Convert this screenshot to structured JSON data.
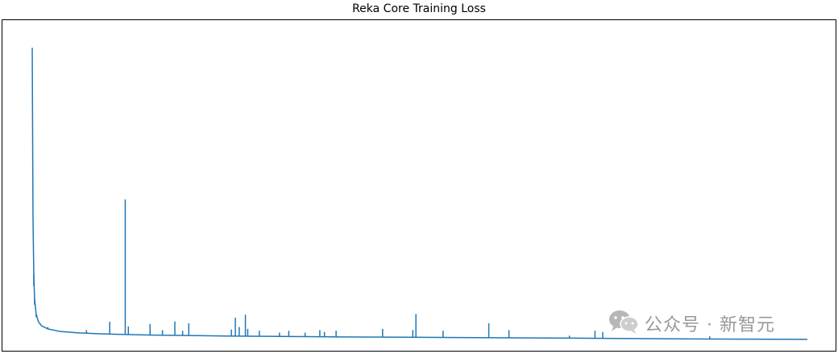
{
  "chart_data": {
    "type": "line",
    "title": "Reka Core Training Loss",
    "xlabel": "",
    "ylabel": "",
    "grid": false,
    "axes_ticks_shown": false,
    "color": "#1f77b4",
    "x_range": [
      0,
      1000
    ],
    "y_range": [
      0,
      100
    ],
    "series": [
      {
        "baseline": {
          "x": [
            0,
            1,
            2,
            3,
            5,
            8,
            12,
            20,
            35,
            60,
            100,
            150,
            250,
            400,
            550,
            700,
            850,
            1000
          ],
          "y": [
            95,
            40,
            22,
            14,
            9,
            6.5,
            5.2,
            4.2,
            3.4,
            2.9,
            2.5,
            2.2,
            1.9,
            1.6,
            1.4,
            1.2,
            0.95,
            0.8
          ]
        },
        "spikes": [
          {
            "x": 2,
            "y": 18
          },
          {
            "x": 3,
            "y": 12
          },
          {
            "x": 5,
            "y": 8
          },
          {
            "x": 10,
            "y": 6
          },
          {
            "x": 20,
            "y": 4.8
          },
          {
            "x": 70,
            "y": 3.8
          },
          {
            "x": 100,
            "y": 6.5
          },
          {
            "x": 120,
            "y": 46
          },
          {
            "x": 124,
            "y": 5.0
          },
          {
            "x": 152,
            "y": 5.8
          },
          {
            "x": 168,
            "y": 3.8
          },
          {
            "x": 184,
            "y": 6.6
          },
          {
            "x": 194,
            "y": 3.6
          },
          {
            "x": 202,
            "y": 6.0
          },
          {
            "x": 257,
            "y": 4.0
          },
          {
            "x": 262,
            "y": 7.8
          },
          {
            "x": 267,
            "y": 4.8
          },
          {
            "x": 275,
            "y": 8.8
          },
          {
            "x": 278,
            "y": 4.2
          },
          {
            "x": 293,
            "y": 3.6
          },
          {
            "x": 319,
            "y": 3.0
          },
          {
            "x": 331,
            "y": 3.6
          },
          {
            "x": 352,
            "y": 3.0
          },
          {
            "x": 371,
            "y": 3.8
          },
          {
            "x": 377,
            "y": 3.2
          },
          {
            "x": 392,
            "y": 3.6
          },
          {
            "x": 452,
            "y": 4.2
          },
          {
            "x": 491,
            "y": 3.8
          },
          {
            "x": 495,
            "y": 9.0
          },
          {
            "x": 530,
            "y": 3.6
          },
          {
            "x": 589,
            "y": 6.0
          },
          {
            "x": 615,
            "y": 3.8
          },
          {
            "x": 693,
            "y": 2.0
          },
          {
            "x": 726,
            "y": 3.6
          },
          {
            "x": 736,
            "y": 3.2
          },
          {
            "x": 874,
            "y": 1.8
          }
        ]
      }
    ]
  },
  "watermark": {
    "icon": "wechat-icon",
    "text": "公众号 · 新智元"
  }
}
